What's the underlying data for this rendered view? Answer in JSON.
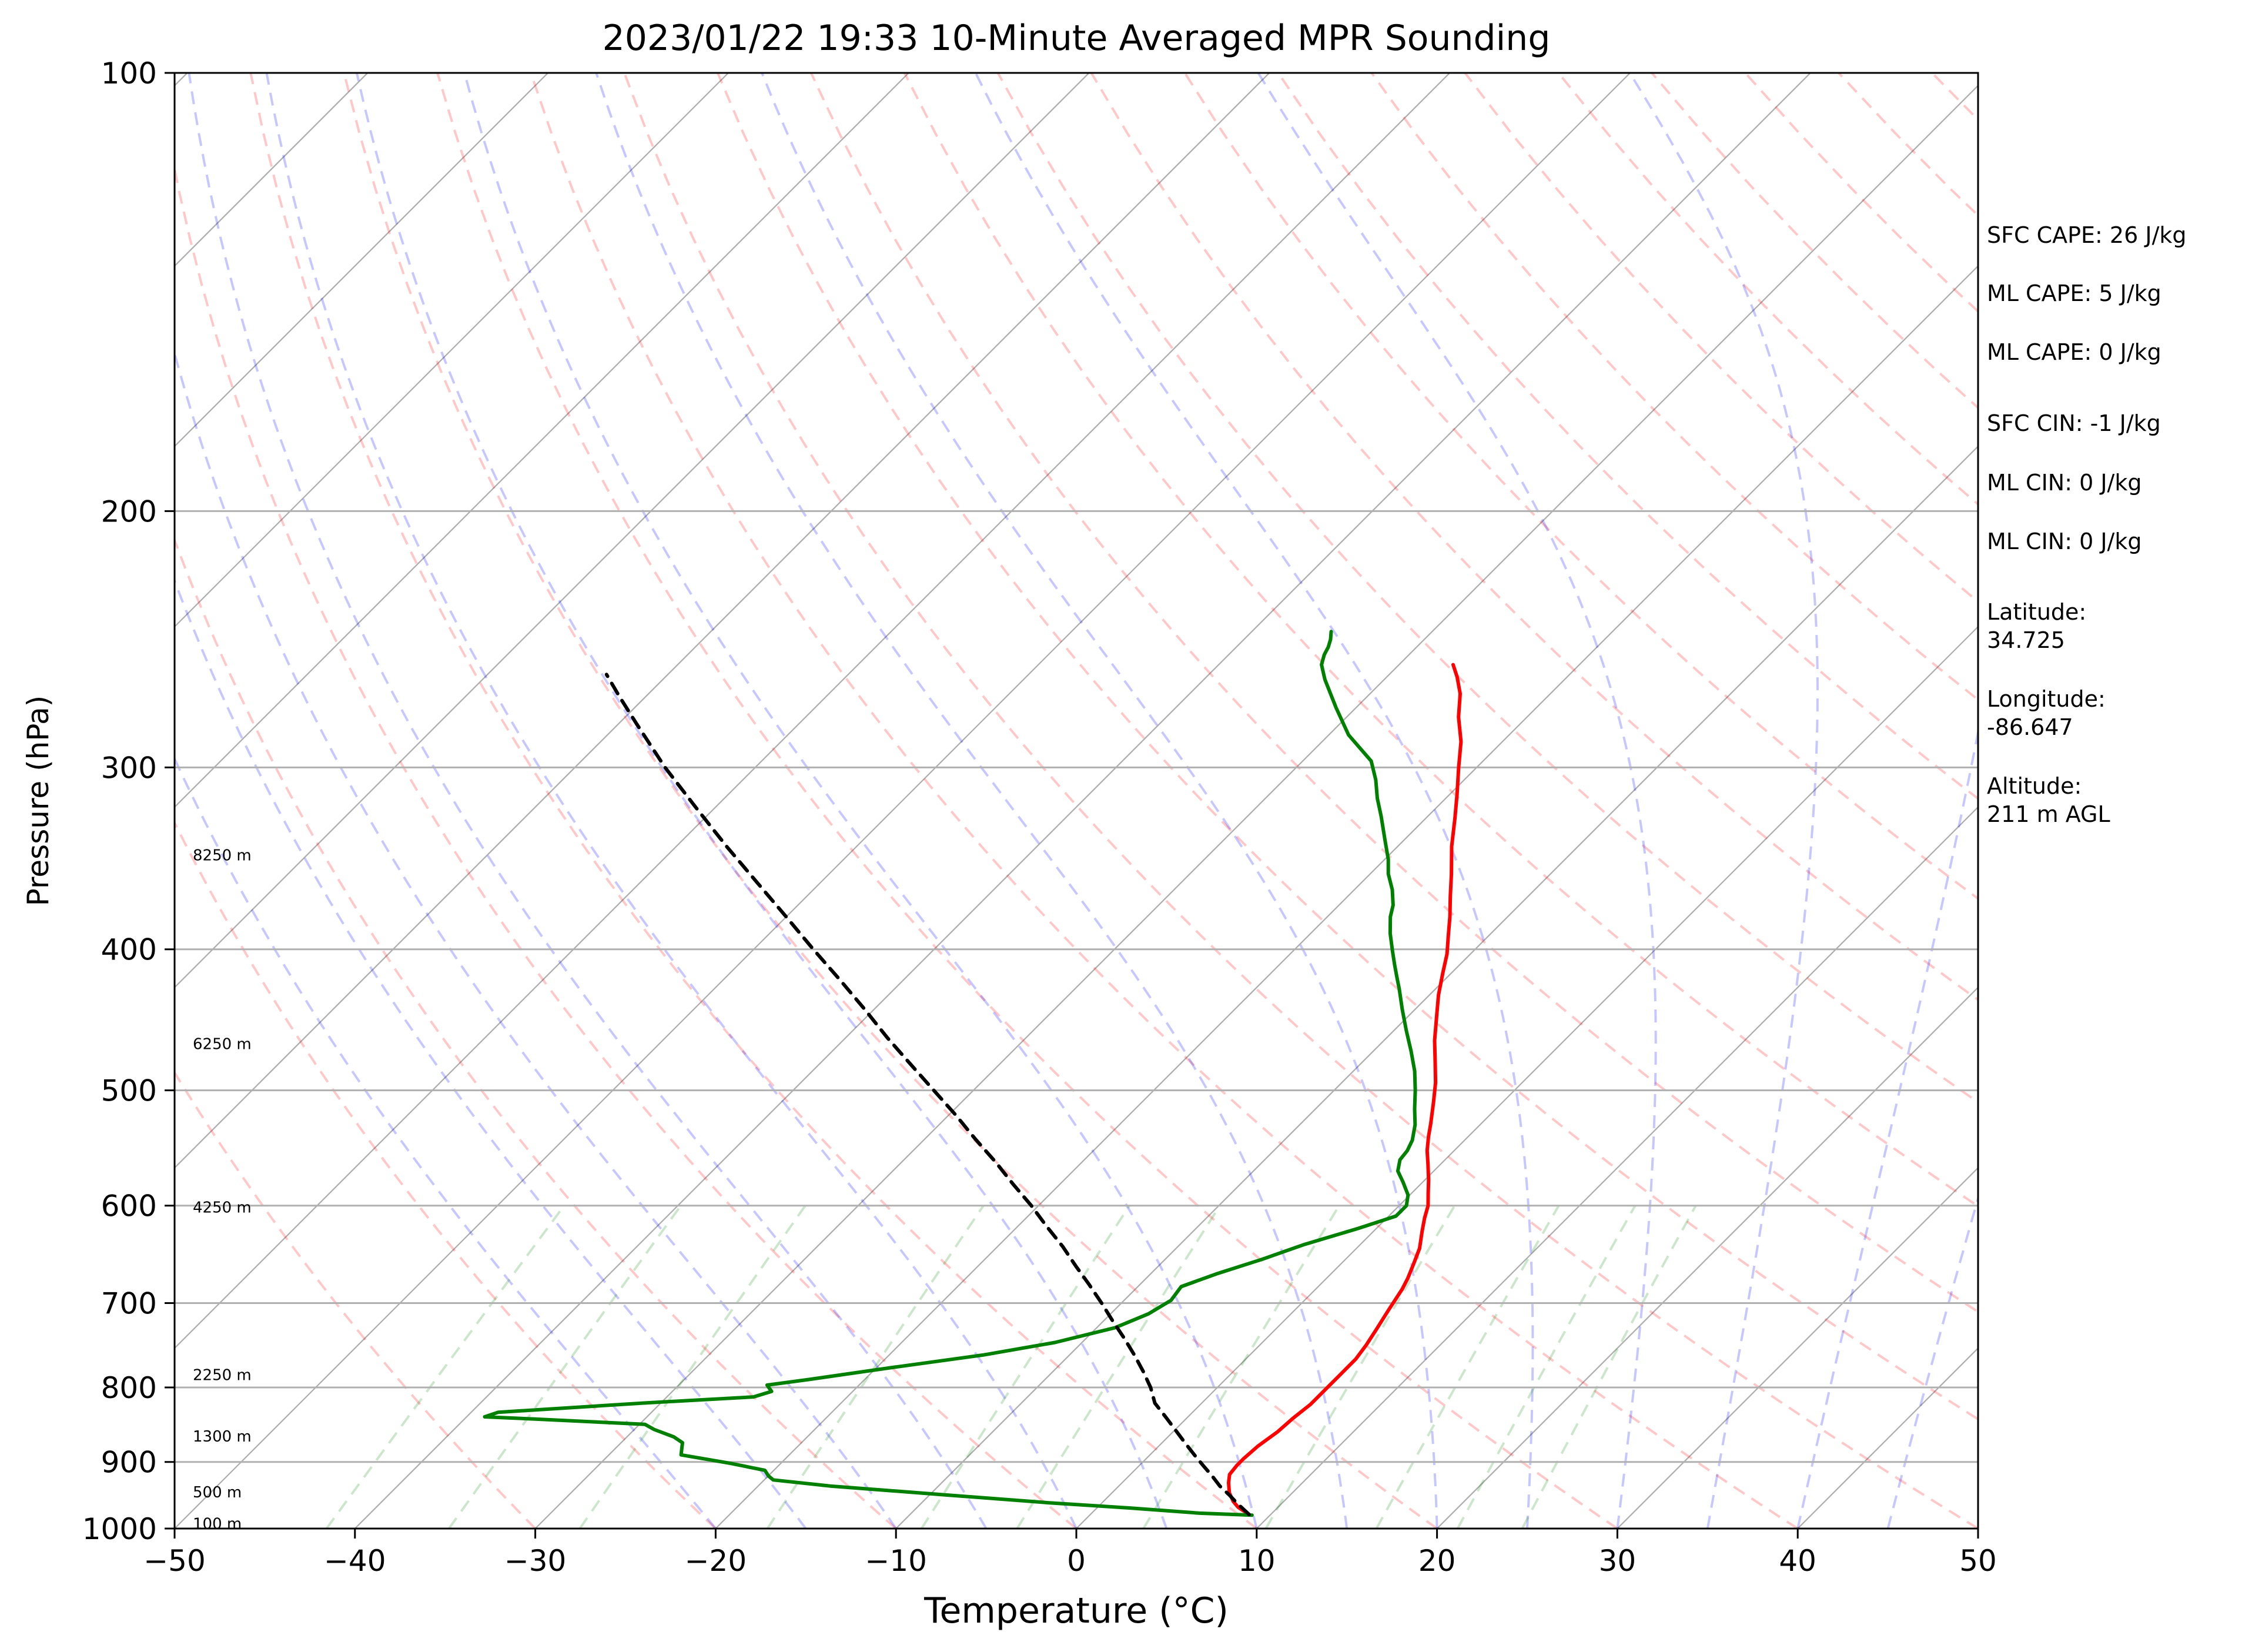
{
  "chart_data": {
    "type": "skew-t",
    "title": "2023/01/22 19:33 10-Minute Averaged MPR Sounding",
    "xlabel": "Temperature (°C)",
    "ylabel": "Pressure (hPa)",
    "xlim": [
      -50,
      50
    ],
    "ylim": [
      1000,
      100
    ],
    "y_scale": "log",
    "x_ticks": [
      -50,
      -40,
      -30,
      -20,
      -10,
      0,
      10,
      20,
      30,
      40,
      50
    ],
    "x_tick_labels": [
      "−50",
      "−40",
      "−30",
      "−20",
      "−10",
      "0",
      "10",
      "20",
      "30",
      "40",
      "50"
    ],
    "y_ticks": [
      1000,
      900,
      800,
      700,
      600,
      500,
      400,
      300,
      200,
      100
    ],
    "y_tick_labels": [
      "1000",
      "900",
      "800",
      "700",
      "600",
      "500",
      "400",
      "300",
      "200",
      "100"
    ],
    "height_labels": [
      {
        "pressure": 993,
        "label": "100 m"
      },
      {
        "pressure": 945,
        "label": "500 m"
      },
      {
        "pressure": 865,
        "label": "1300 m"
      },
      {
        "pressure": 785,
        "label": "2250 m"
      },
      {
        "pressure": 602,
        "label": "4250 m"
      },
      {
        "pressure": 465,
        "label": "6250 m"
      },
      {
        "pressure": 345,
        "label": "8250 m"
      }
    ],
    "series": [
      {
        "color": "#ff0000",
        "points": [
          [
            8.8,
            978
          ],
          [
            7.8,
            967
          ],
          [
            7.2,
            958
          ],
          [
            6.5,
            945
          ],
          [
            5.9,
            930
          ],
          [
            5.5,
            918
          ],
          [
            5.4,
            905
          ],
          [
            5.4,
            895
          ],
          [
            5.5,
            878
          ],
          [
            5.8,
            858
          ],
          [
            5.9,
            840
          ],
          [
            6.1,
            822
          ],
          [
            6.1,
            805
          ],
          [
            6.1,
            785
          ],
          [
            6.1,
            765
          ],
          [
            5.9,
            748
          ],
          [
            5.6,
            730
          ],
          [
            5.2,
            708
          ],
          [
            4.8,
            685
          ],
          [
            4.5,
            673
          ],
          [
            4.0,
            657
          ],
          [
            3.5,
            642
          ],
          [
            2.7,
            625
          ],
          [
            2.1,
            612
          ],
          [
            1.6,
            600
          ],
          [
            0.9,
            588
          ],
          [
            0.2,
            576
          ],
          [
            -0.7,
            562
          ],
          [
            -1.5,
            550
          ],
          [
            -2.2,
            538
          ],
          [
            -2.8,
            527
          ],
          [
            -3.8,
            510
          ],
          [
            -4.8,
            494
          ],
          [
            -5.9,
            479
          ],
          [
            -7.2,
            462
          ],
          [
            -8.4,
            445
          ],
          [
            -9.5,
            430
          ],
          [
            -10.5,
            415
          ],
          [
            -11.3,
            403
          ],
          [
            -12.2,
            392
          ],
          [
            -13.2,
            380
          ],
          [
            -14.3,
            368
          ],
          [
            -15.5,
            355
          ],
          [
            -17.0,
            340
          ],
          [
            -18.4,
            325
          ],
          [
            -19.6,
            313
          ],
          [
            -21.0,
            300
          ],
          [
            -22.3,
            288
          ],
          [
            -23.8,
            277
          ],
          [
            -25.0,
            267
          ],
          [
            -26.1,
            260
          ],
          [
            -27.0,
            255
          ]
        ]
      },
      {
        "color": "#008000",
        "points": [
          [
            9.0,
            979
          ],
          [
            6.0,
            976
          ],
          [
            1.8,
            968
          ],
          [
            -3.0,
            960
          ],
          [
            -9.2,
            948
          ],
          [
            -16.0,
            935
          ],
          [
            -19.5,
            926
          ],
          [
            -20.0,
            920
          ],
          [
            -20.5,
            912
          ],
          [
            -22.8,
            902
          ],
          [
            -26.0,
            890
          ],
          [
            -26.6,
            873
          ],
          [
            -27.4,
            865
          ],
          [
            -28.9,
            855
          ],
          [
            -29.7,
            848
          ],
          [
            -36.1,
            841
          ],
          [
            -39.0,
            838
          ],
          [
            -38.5,
            832
          ],
          [
            -31.0,
            820
          ],
          [
            -25.2,
            812
          ],
          [
            -24.5,
            805
          ],
          [
            -25.1,
            797
          ],
          [
            -23.1,
            790
          ],
          [
            -19.1,
            775
          ],
          [
            -14.8,
            760
          ],
          [
            -11.5,
            745
          ],
          [
            -9.0,
            728
          ],
          [
            -7.9,
            712
          ],
          [
            -7.4,
            697
          ],
          [
            -7.6,
            682
          ],
          [
            -6.3,
            668
          ],
          [
            -4.6,
            653
          ],
          [
            -3.1,
            638
          ],
          [
            -1.0,
            622
          ],
          [
            0.4,
            610
          ],
          [
            0.4,
            600
          ],
          [
            -0.1,
            590
          ],
          [
            -1.1,
            578
          ],
          [
            -2.0,
            568
          ],
          [
            -2.5,
            558
          ],
          [
            -2.6,
            550
          ],
          [
            -2.9,
            541
          ],
          [
            -3.6,
            528
          ],
          [
            -4.5,
            515
          ],
          [
            -5.5,
            500
          ],
          [
            -6.6,
            485
          ],
          [
            -7.9,
            470
          ],
          [
            -9.3,
            455
          ],
          [
            -10.7,
            440
          ],
          [
            -12.0,
            426
          ],
          [
            -12.8,
            418
          ],
          [
            -13.6,
            410
          ],
          [
            -14.5,
            401
          ],
          [
            -15.6,
            390
          ],
          [
            -16.5,
            380
          ],
          [
            -17.0,
            373
          ],
          [
            -17.9,
            364
          ],
          [
            -19.0,
            355
          ],
          [
            -19.8,
            347
          ],
          [
            -21.0,
            337
          ],
          [
            -22.6,
            324
          ],
          [
            -23.8,
            315
          ],
          [
            -24.9,
            306
          ],
          [
            -26.2,
            297
          ],
          [
            -28.9,
            285
          ],
          [
            -31.1,
            273
          ],
          [
            -33.3,
            261
          ],
          [
            -34.3,
            255
          ],
          [
            -34.7,
            251
          ],
          [
            -34.9,
            248
          ],
          [
            -35.2,
            245
          ],
          [
            -35.6,
            242
          ]
        ]
      },
      {
        "color": "#000000",
        "style": "dashed",
        "points": [
          [
            8.8,
            978
          ],
          [
            7.6,
            962
          ],
          [
            6.6,
            948
          ],
          [
            5.6,
            935
          ],
          [
            4.6,
            920
          ],
          [
            3.6,
            906
          ],
          [
            2.6,
            892
          ],
          [
            1.4,
            875
          ],
          [
            0.2,
            858
          ],
          [
            -1.1,
            840
          ],
          [
            -2.6,
            820
          ],
          [
            -3.7,
            800
          ],
          [
            -5.0,
            780
          ],
          [
            -6.4,
            760
          ],
          [
            -7.9,
            740
          ],
          [
            -9.5,
            720
          ],
          [
            -11.1,
            700
          ],
          [
            -12.8,
            680
          ],
          [
            -14.6,
            660
          ],
          [
            -16.4,
            640
          ],
          [
            -18.4,
            620
          ],
          [
            -20.4,
            600
          ],
          [
            -22.6,
            580
          ],
          [
            -24.8,
            560
          ],
          [
            -27.2,
            540
          ],
          [
            -29.6,
            520
          ],
          [
            -32.2,
            500
          ],
          [
            -34.9,
            480
          ],
          [
            -37.7,
            460
          ],
          [
            -40.5,
            440
          ],
          [
            -43.5,
            420
          ],
          [
            -46.7,
            400
          ],
          [
            -50.0,
            380
          ],
          [
            -53.5,
            360
          ],
          [
            -57.2,
            340
          ],
          [
            -61.0,
            320
          ],
          [
            -65.0,
            300
          ],
          [
            -69.0,
            280
          ],
          [
            -71.5,
            268
          ],
          [
            -73.4,
            259
          ]
        ]
      }
    ],
    "background_lines": {
      "dry_adiabats_color": "#ff0000",
      "moist_adiabats_color": "#0000ff",
      "mixing_ratio_color": "#008000",
      "isotherms_color": "#808080"
    }
  },
  "annotations": [
    {
      "text": "SFC CAPE: 26 J/kg"
    },
    {
      "text": "ML CAPE: 5 J/kg"
    },
    {
      "text": "ML CAPE: 0 J/kg"
    },
    {
      "text": "SFC CIN: -1 J/kg"
    },
    {
      "text": "ML CIN: 0 J/kg"
    },
    {
      "text": "ML CIN: 0 J/kg"
    },
    {
      "text": "Latitude:\n34.725"
    },
    {
      "text": "Longitude:\n-86.647"
    },
    {
      "text": "Altitude:\n211 m AGL"
    }
  ]
}
